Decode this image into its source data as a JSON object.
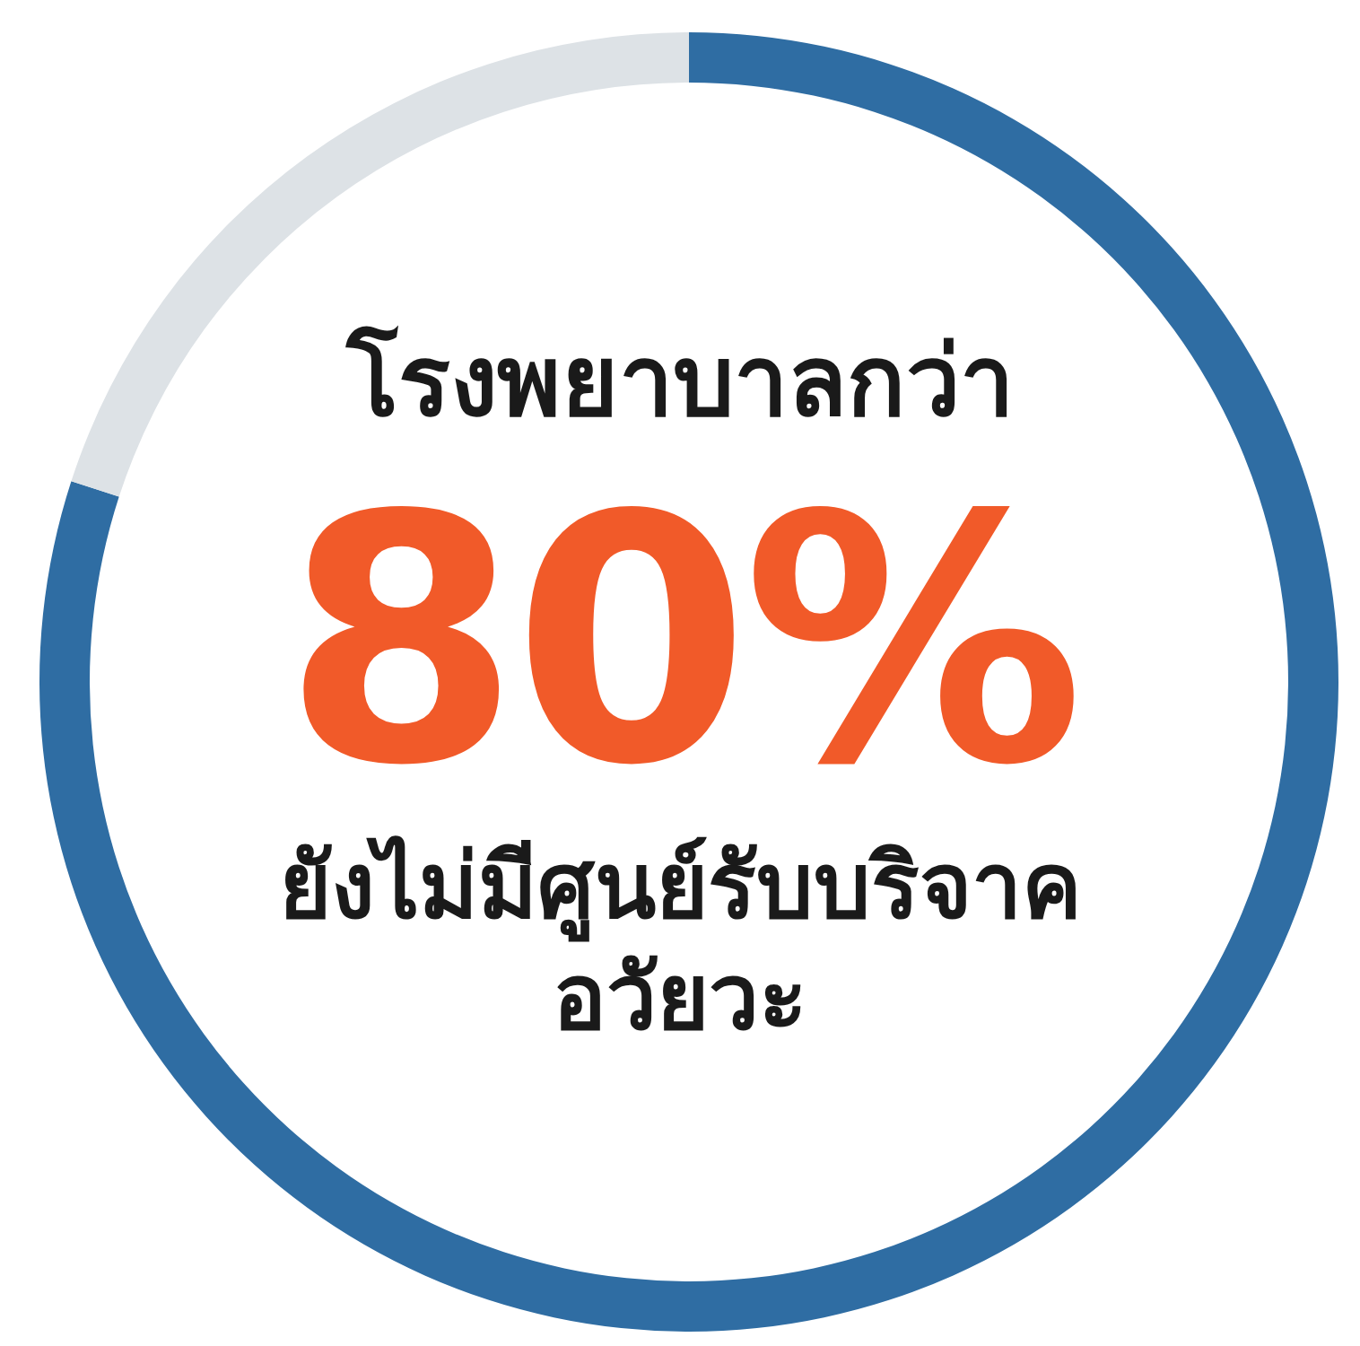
{
  "chart_data": {
    "type": "donut",
    "title": "โรงพยาบาลกว่า",
    "categories": [
      null,
      null
    ],
    "values": [
      80,
      20
    ],
    "colors": [
      "#2f6da3",
      "#dde2e6"
    ],
    "value_labels": [
      "80%",
      null
    ],
    "annotations": [
      "ยังไม่มีศูนย์รับบริจาคอวัยวะ"
    ],
    "legend": false
  }
}
